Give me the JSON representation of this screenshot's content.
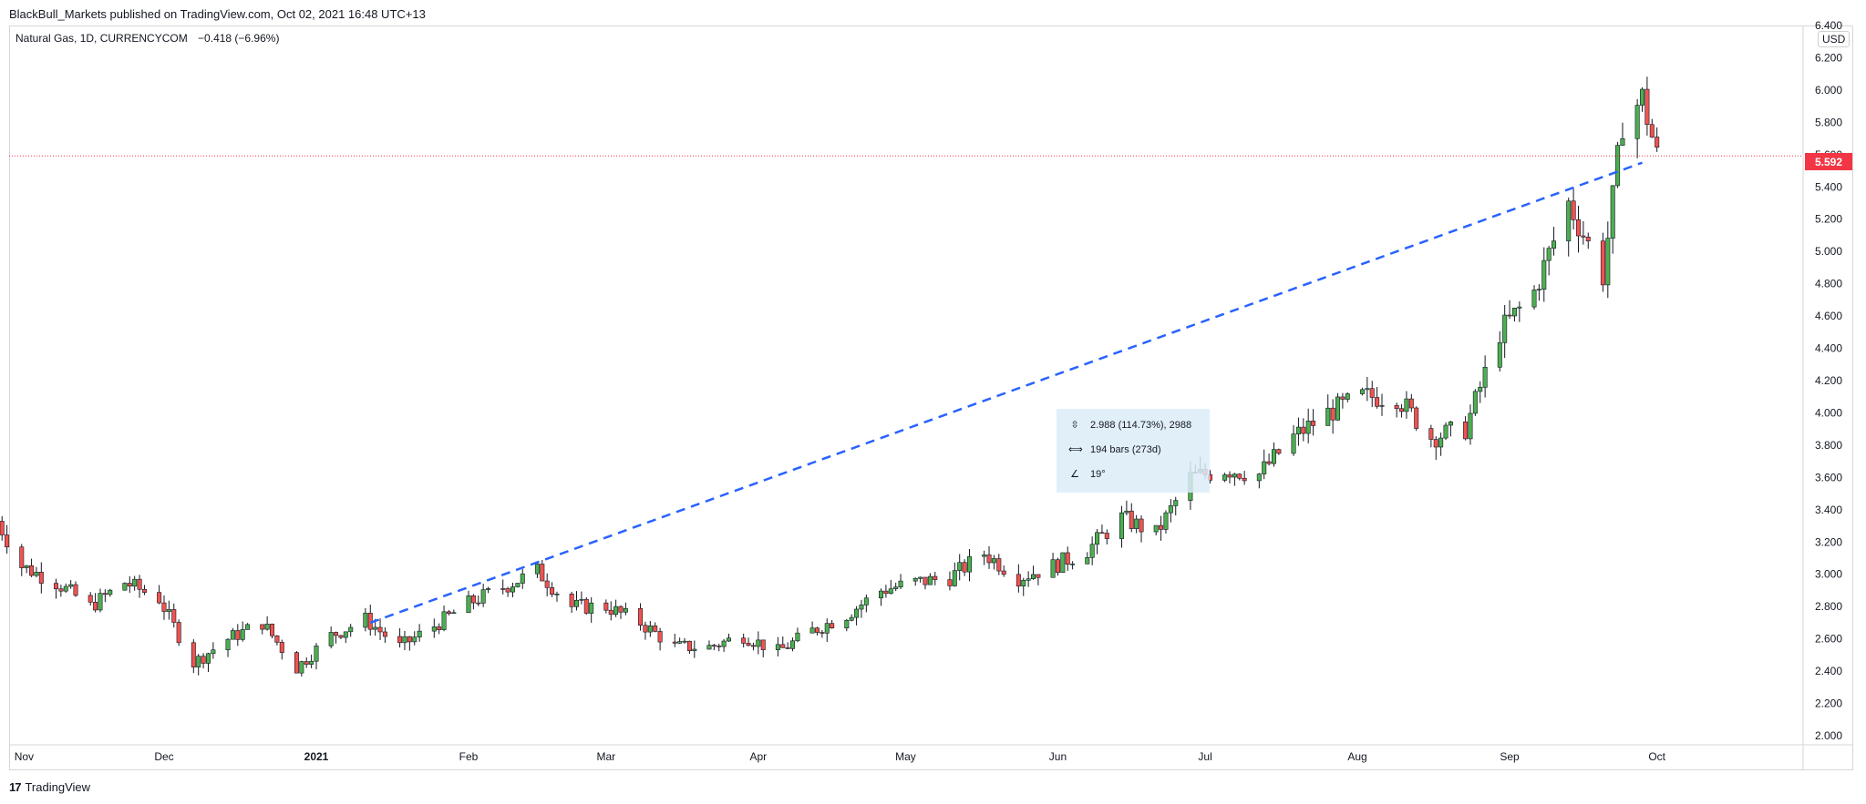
{
  "header": {
    "published": "BlackBull_Markets published on TradingView.com, Oct 02, 2021 16:48 UTC+13"
  },
  "symbol": {
    "name": "Natural Gas, 1D, CURRENCYCOM",
    "change": "−0.418 (−6.96%)"
  },
  "currency_label": "USD",
  "last_price_label": "5.592",
  "measure_tooltip": {
    "price_range": "2.988 (114.73%), 2988",
    "bars_range": "194 bars (273d)",
    "angle": "19°"
  },
  "footer": {
    "brand": "TradingView"
  },
  "colors": {
    "up": "#26a69a",
    "up_body": "#4caf50",
    "down_body": "#ef5350",
    "trendline": "#2962ff",
    "price_line": "#f23645"
  },
  "chart_data": {
    "type": "candlestick",
    "title": "Natural Gas, 1D, CURRENCYCOM",
    "ylabel": "USD",
    "ylim": [
      2.0,
      6.4
    ],
    "y_ticks": [
      "6.400",
      "6.200",
      "6.000",
      "5.800",
      "5.600",
      "5.400",
      "5.200",
      "5.000",
      "4.800",
      "4.600",
      "4.400",
      "4.200",
      "4.000",
      "3.800",
      "3.600",
      "3.400",
      "3.200",
      "3.000",
      "2.800",
      "2.600",
      "2.400",
      "2.200",
      "2.000"
    ],
    "x_ticks": [
      "Nov",
      "Dec",
      "2021",
      "Feb",
      "Mar",
      "Apr",
      "May",
      "Jun",
      "Jul",
      "Aug",
      "Sep",
      "Oct"
    ],
    "last_price": 5.592,
    "trendline": {
      "from": [
        "2021-01-12",
        2.7
      ],
      "to": [
        "2021-09-28",
        5.55
      ],
      "style": "dashed"
    },
    "anchors": [
      [
        "2020-10-28",
        3.33
      ],
      [
        "2020-11-02",
        3.05
      ],
      [
        "2020-11-09",
        2.95
      ],
      [
        "2020-11-16",
        2.8
      ],
      [
        "2020-11-23",
        2.95
      ],
      [
        "2020-11-30",
        2.85
      ],
      [
        "2020-12-07",
        2.45
      ],
      [
        "2020-12-14",
        2.6
      ],
      [
        "2020-12-21",
        2.7
      ],
      [
        "2020-12-28",
        2.42
      ],
      [
        "2021-01-04",
        2.62
      ],
      [
        "2021-01-11",
        2.72
      ],
      [
        "2021-01-18",
        2.55
      ],
      [
        "2021-01-25",
        2.68
      ],
      [
        "2021-02-01",
        2.82
      ],
      [
        "2021-02-08",
        2.92
      ],
      [
        "2021-02-15",
        3.02
      ],
      [
        "2021-02-22",
        2.8
      ],
      [
        "2021-03-01",
        2.8
      ],
      [
        "2021-03-08",
        2.7
      ],
      [
        "2021-03-15",
        2.55
      ],
      [
        "2021-03-22",
        2.55
      ],
      [
        "2021-03-29",
        2.62
      ],
      [
        "2021-04-05",
        2.52
      ],
      [
        "2021-04-12",
        2.65
      ],
      [
        "2021-04-19",
        2.75
      ],
      [
        "2021-04-26",
        2.9
      ],
      [
        "2021-05-03",
        2.95
      ],
      [
        "2021-05-10",
        2.98
      ],
      [
        "2021-05-17",
        3.13
      ],
      [
        "2021-05-24",
        2.98
      ],
      [
        "2021-05-31",
        3.05
      ],
      [
        "2021-06-07",
        3.15
      ],
      [
        "2021-06-14",
        3.35
      ],
      [
        "2021-06-21",
        3.25
      ],
      [
        "2021-06-28",
        3.6
      ],
      [
        "2021-07-05",
        3.65
      ],
      [
        "2021-07-12",
        3.62
      ],
      [
        "2021-07-19",
        3.85
      ],
      [
        "2021-07-26",
        4.0
      ],
      [
        "2021-08-02",
        4.1
      ],
      [
        "2021-08-09",
        4.1
      ],
      [
        "2021-08-16",
        3.85
      ],
      [
        "2021-08-23",
        3.9
      ],
      [
        "2021-08-30",
        4.5
      ],
      [
        "2021-09-06",
        4.75
      ],
      [
        "2021-09-13",
        5.3
      ],
      [
        "2021-09-20",
        4.85
      ],
      [
        "2021-09-24",
        5.8
      ],
      [
        "2021-09-28",
        5.95
      ],
      [
        "2021-10-01",
        5.592
      ]
    ]
  }
}
